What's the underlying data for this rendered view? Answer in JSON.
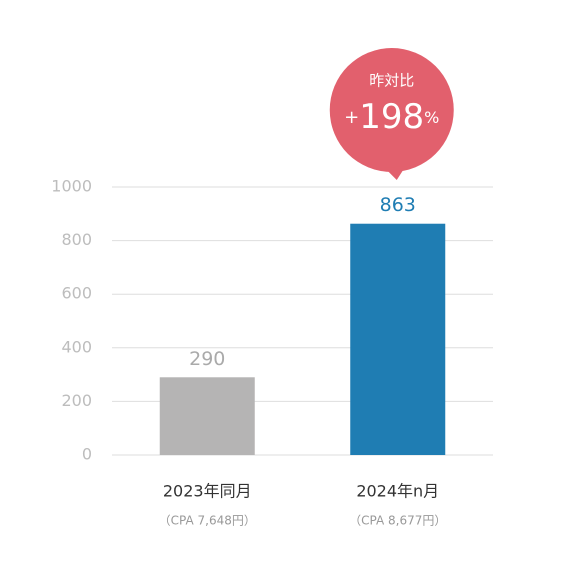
{
  "chart_data": {
    "type": "bar",
    "categories": [
      "2023年同月",
      "2024年n月"
    ],
    "category_notes": [
      "（CPA 7,648円）",
      "（CPA 8,677円）"
    ],
    "values": [
      290,
      863
    ],
    "colors": [
      "#b5b4b4",
      "#1f7db3"
    ],
    "ylim": [
      0,
      1000
    ],
    "yticks": [
      0,
      200,
      400,
      600,
      800,
      1000
    ],
    "grid": true,
    "annotation": {
      "title": "昨対比",
      "text": [
        "+",
        "198",
        "%"
      ],
      "color": "#e2606d"
    }
  }
}
